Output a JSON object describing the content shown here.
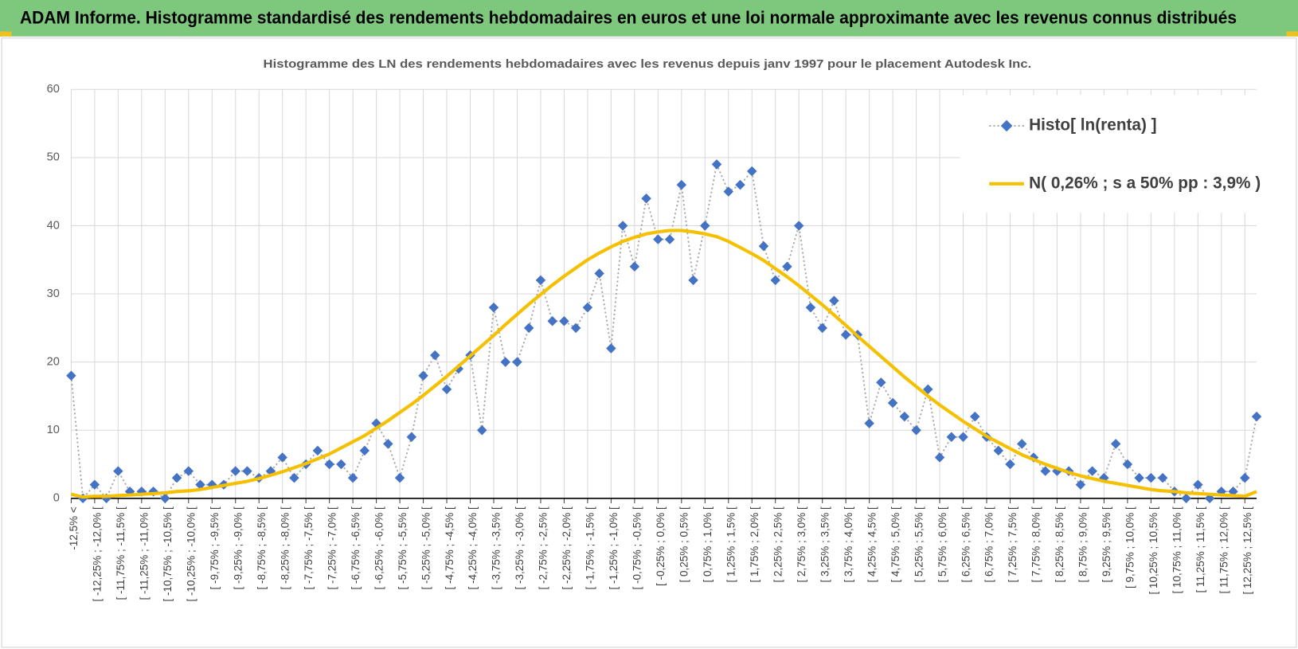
{
  "header": {
    "title": "ADAM Informe. Histogramme standardisé des rendements hebdomadaires en euros et une loi normale approximante avec les revenus connus distribués"
  },
  "chart_data": {
    "type": "line",
    "title": "Histogramme des LN des rendements hebdomadaires avec les revenus depuis janv 1997 pour le placement Autodesk Inc.",
    "categories": [
      "-12,5% <",
      null,
      "[ -12,25% ; -12,0% [",
      null,
      "[ -11,75% ; -11,5% [",
      null,
      "[ -11,25% ; -11,0% [",
      null,
      "[ -10,75% ; -10,5% [",
      null,
      "[ -10,25% ; -10,0% [",
      null,
      "[ -9,75% ; -9,5% [",
      null,
      "[ -9,25% ; -9,0% [",
      null,
      "[ -8,75% ; -8,5% [",
      null,
      "[ -8,25% ; -8,0% [",
      null,
      "[ -7,75% ; -7,5% [",
      null,
      "[ -7,25% ; -7,0% [",
      null,
      "[ -6,75% ; -6,5% [",
      null,
      "[ -6,25% ; -6,0% [",
      null,
      "[ -5,75% ; -5,5% [",
      null,
      "[ -5,25% ; -5,0% [",
      null,
      "[ -4,75% ; -4,5% [",
      null,
      "[ -4,25% ; -4,0% [",
      null,
      "[ -3,75% ; -3,5% [",
      null,
      "[ -3,25% ; -3,0% [",
      null,
      "[ -2,75% ; -2,5% [",
      null,
      "[ -2,25% ; -2,0% [",
      null,
      "[ -1,75% ; -1,5% [",
      null,
      "[ -1,25% ; -1,0% [",
      null,
      "[ -0,75% ; -0,5% [",
      null,
      "[ -0,25% ; 0,0% [",
      null,
      "[ 0,25% ; 0,5% [",
      null,
      "[ 0,75% ; 1,0% [",
      null,
      "[ 1,25% ; 1,5% [",
      null,
      "[ 1,75% ; 2,0% [",
      null,
      "[ 2,25% ; 2,5% [",
      null,
      "[ 2,75% ; 3,0% [",
      null,
      "[ 3,25% ; 3,5% [",
      null,
      "[ 3,75% ; 4,0% [",
      null,
      "[ 4,25% ; 4,5% [",
      null,
      "[ 4,75% ; 5,0% [",
      null,
      "[ 5,25% ; 5,5% [",
      null,
      "[ 5,75% ; 6,0% [",
      null,
      "[ 6,25% ; 6,5% [",
      null,
      "[ 6,75% ; 7,0% [",
      null,
      "[ 7,25% ; 7,5% [",
      null,
      "[ 7,75% ; 8,0% [",
      null,
      "[ 8,25% ; 8,5% [",
      null,
      "[ 8,75% ; 9,0% [",
      null,
      "[ 9,25% ; 9,5% [",
      null,
      "[ 9,75% ; 10,0% [",
      null,
      "[ 10,25% ; 10,5% [",
      null,
      "[ 10,75% ; 11,0% [",
      null,
      "[ 11,25% ; 11,5% [",
      null,
      "[ 11,75% ; 12,0% [",
      null,
      "[ 12,25% ; 12,5% [",
      null
    ],
    "series": [
      {
        "name": "Histo[ ln(renta) ]",
        "color": "#4472c4",
        "line_color": "#a6a6a6",
        "line_style": "dotted",
        "marker": "diamond",
        "values": [
          18,
          0,
          2,
          0,
          4,
          1,
          1,
          1,
          0,
          3,
          4,
          2,
          2,
          2,
          4,
          4,
          3,
          4,
          6,
          3,
          5,
          7,
          5,
          5,
          3,
          7,
          11,
          8,
          3,
          9,
          18,
          21,
          16,
          19,
          21,
          10,
          28,
          20,
          20,
          25,
          32,
          26,
          26,
          25,
          28,
          33,
          22,
          40,
          34,
          44,
          38,
          38,
          46,
          32,
          40,
          49,
          45,
          46,
          48,
          37,
          32,
          34,
          40,
          28,
          25,
          29,
          24,
          24,
          11,
          17,
          14,
          12,
          10,
          16,
          6,
          9,
          9,
          12,
          9,
          7,
          5,
          8,
          6,
          4,
          4,
          4,
          2,
          4,
          3,
          8,
          5,
          3,
          3,
          3,
          1,
          0,
          2,
          0,
          1,
          1,
          3,
          12
        ]
      },
      {
        "name": "N( 0,26% ; s a 50% pp : 3,9% )",
        "color": "#f5c000",
        "line_color": "#f5c000",
        "line_style": "solid",
        "marker": "none",
        "values": [
          0.6,
          0.2,
          0.3,
          0.3,
          0.4,
          0.5,
          0.6,
          0.7,
          0.8,
          1.0,
          1.1,
          1.3,
          1.6,
          1.9,
          2.2,
          2.5,
          2.9,
          3.4,
          3.9,
          4.5,
          5.1,
          5.8,
          6.5,
          7.4,
          8.3,
          9.2,
          10.3,
          11.4,
          12.6,
          13.8,
          15.1,
          16.5,
          17.9,
          19.4,
          20.9,
          22.4,
          23.9,
          25.5,
          27.0,
          28.5,
          29.9,
          31.3,
          32.6,
          33.8,
          35.0,
          36.0,
          36.9,
          37.7,
          38.3,
          38.8,
          39.1,
          39.3,
          39.3,
          39.1,
          38.8,
          38.4,
          37.7,
          36.8,
          35.9,
          34.9,
          33.7,
          32.5,
          31.2,
          29.8,
          28.4,
          26.9,
          25.4,
          23.8,
          22.3,
          20.8,
          19.3,
          17.8,
          16.4,
          15.0,
          13.7,
          12.5,
          11.3,
          10.2,
          9.1,
          8.2,
          7.3,
          6.4,
          5.7,
          5.0,
          4.4,
          3.8,
          3.3,
          2.9,
          2.5,
          2.2,
          1.9,
          1.6,
          1.3,
          1.1,
          1.0,
          0.8,
          0.7,
          0.6,
          0.5,
          0.4,
          0.3,
          1.0
        ]
      }
    ],
    "ylim": [
      0,
      60
    ],
    "yticks": [
      0,
      10,
      20,
      30,
      40,
      50,
      60
    ],
    "grid": true,
    "legend": "upper right"
  }
}
